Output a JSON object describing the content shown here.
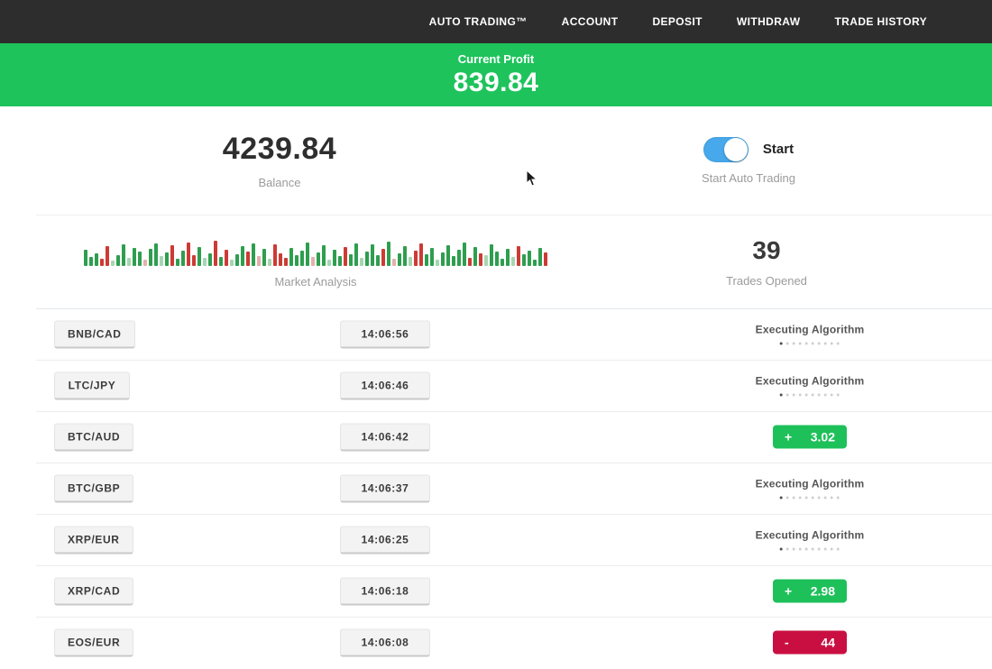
{
  "navbar": {
    "items": [
      {
        "label": "AUTO TRADING™"
      },
      {
        "label": "ACCOUNT"
      },
      {
        "label": "DEPOSIT"
      },
      {
        "label": "WITHDRAW"
      },
      {
        "label": "TRADE HISTORY"
      }
    ]
  },
  "profit_banner": {
    "label": "Current Profit",
    "value": "839.84"
  },
  "stats": {
    "balance": {
      "value": "4239.84",
      "label": "Balance"
    },
    "auto_trading": {
      "toggle_label": "Start",
      "caption": "Start Auto Trading",
      "toggle_on": true
    },
    "market_analysis": {
      "label": "Market Analysis"
    },
    "trades_opened": {
      "value": "39",
      "label": "Trades Opened"
    }
  },
  "chart_data": {
    "type": "bar",
    "title": "Market Analysis",
    "ylabel": "",
    "xlabel": "",
    "bars": [
      [
        18,
        "g"
      ],
      [
        10,
        "g"
      ],
      [
        14,
        "g"
      ],
      [
        8,
        "r"
      ],
      [
        22,
        "r"
      ],
      [
        6,
        "gl"
      ],
      [
        12,
        "g"
      ],
      [
        24,
        "g"
      ],
      [
        9,
        "gl"
      ],
      [
        20,
        "g"
      ],
      [
        16,
        "g"
      ],
      [
        7,
        "rl"
      ],
      [
        19,
        "g"
      ],
      [
        25,
        "g"
      ],
      [
        11,
        "gl"
      ],
      [
        15,
        "g"
      ],
      [
        23,
        "r"
      ],
      [
        8,
        "g"
      ],
      [
        17,
        "g"
      ],
      [
        26,
        "r"
      ],
      [
        12,
        "r"
      ],
      [
        21,
        "g"
      ],
      [
        9,
        "gl"
      ],
      [
        14,
        "g"
      ],
      [
        28,
        "r"
      ],
      [
        10,
        "g"
      ],
      [
        18,
        "r"
      ],
      [
        7,
        "gl"
      ],
      [
        13,
        "g"
      ],
      [
        22,
        "g"
      ],
      [
        16,
        "r"
      ],
      [
        25,
        "g"
      ],
      [
        11,
        "rl"
      ],
      [
        19,
        "g"
      ],
      [
        8,
        "gl"
      ],
      [
        24,
        "r"
      ],
      [
        14,
        "r"
      ],
      [
        9,
        "r"
      ],
      [
        20,
        "g"
      ],
      [
        12,
        "g"
      ],
      [
        17,
        "g"
      ],
      [
        26,
        "g"
      ],
      [
        10,
        "rl"
      ],
      [
        15,
        "g"
      ],
      [
        23,
        "g"
      ],
      [
        7,
        "gl"
      ],
      [
        18,
        "g"
      ],
      [
        11,
        "g"
      ],
      [
        21,
        "r"
      ],
      [
        13,
        "g"
      ],
      [
        25,
        "g"
      ],
      [
        9,
        "gl"
      ],
      [
        16,
        "g"
      ],
      [
        24,
        "g"
      ],
      [
        12,
        "g"
      ],
      [
        19,
        "r"
      ],
      [
        27,
        "g"
      ],
      [
        8,
        "rl"
      ],
      [
        14,
        "g"
      ],
      [
        22,
        "g"
      ],
      [
        10,
        "gl"
      ],
      [
        17,
        "r"
      ],
      [
        25,
        "r"
      ],
      [
        13,
        "g"
      ],
      [
        20,
        "g"
      ],
      [
        7,
        "gl"
      ],
      [
        15,
        "g"
      ],
      [
        23,
        "g"
      ],
      [
        11,
        "g"
      ],
      [
        18,
        "g"
      ],
      [
        26,
        "g"
      ],
      [
        9,
        "r"
      ],
      [
        21,
        "g"
      ],
      [
        14,
        "r"
      ],
      [
        12,
        "gl"
      ],
      [
        24,
        "g"
      ],
      [
        16,
        "g"
      ],
      [
        8,
        "g"
      ],
      [
        19,
        "g"
      ],
      [
        10,
        "gl"
      ],
      [
        22,
        "r"
      ],
      [
        13,
        "g"
      ],
      [
        17,
        "g"
      ],
      [
        7,
        "g"
      ],
      [
        20,
        "g"
      ],
      [
        15,
        "r"
      ]
    ]
  },
  "trades": [
    {
      "pair": "BNB/CAD",
      "time": "14:06:56",
      "status": "executing",
      "status_label": "Executing Algorithm"
    },
    {
      "pair": "LTC/JPY",
      "time": "14:06:46",
      "status": "executing",
      "status_label": "Executing Algorithm"
    },
    {
      "pair": "BTC/AUD",
      "time": "14:06:42",
      "status": "profit",
      "result_sign": "+",
      "result_value": "3.02"
    },
    {
      "pair": "BTC/GBP",
      "time": "14:06:37",
      "status": "executing",
      "status_label": "Executing Algorithm"
    },
    {
      "pair": "XRP/EUR",
      "time": "14:06:25",
      "status": "executing",
      "status_label": "Executing Algorithm"
    },
    {
      "pair": "XRP/CAD",
      "time": "14:06:18",
      "status": "profit",
      "result_sign": "+",
      "result_value": "2.98"
    },
    {
      "pair": "EOS/EUR",
      "time": "14:06:08",
      "status": "loss",
      "result_sign": "-",
      "result_value": "44"
    }
  ],
  "colors": {
    "navbar_bg": "#2d2d2d",
    "banner_green": "#1ec35c",
    "badge_green": "#1ec05a",
    "badge_red": "#c90f42",
    "toggle_blue": "#47a8eb",
    "bar_green": "#2e9e4f",
    "bar_red": "#cc3b35"
  }
}
